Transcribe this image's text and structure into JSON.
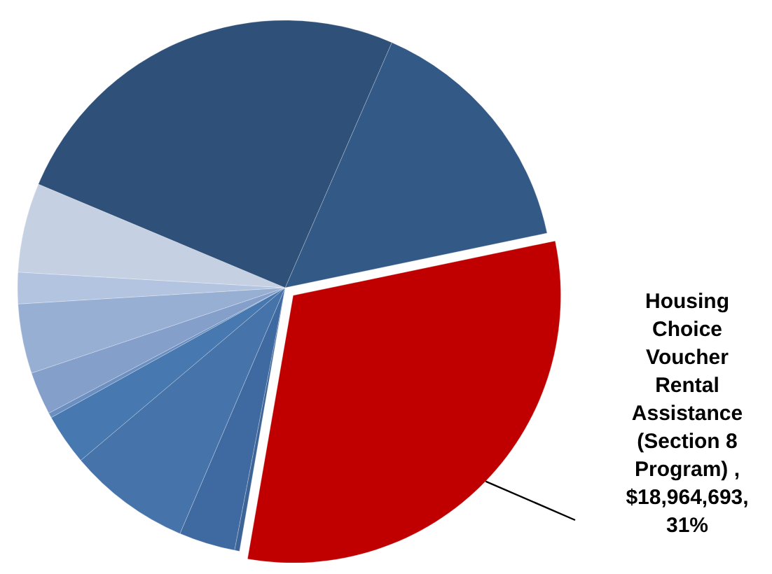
{
  "chart_data": {
    "type": "pie",
    "categories": [
      null,
      "Housing Choice Voucher Rental Assistance (Section 8 Program) , $18,964,693, 31%",
      null,
      null,
      null,
      null,
      null,
      null,
      null,
      null,
      null,
      null
    ],
    "values": [
      15.2,
      31,
      0.3,
      3.4,
      7.4,
      3.1,
      0.3,
      2.6,
      4.2,
      1.9,
      5.4,
      25.2
    ],
    "colors": [
      "#335a87",
      "#c00000",
      "#3d6496",
      "#3f6aa1",
      "#4674aa",
      "#4878b0",
      "#6a8fc0",
      "#859fcb",
      "#98afd4",
      "#b3c4e1",
      "#c5d0e3",
      "#2f5078"
    ]
  }
}
